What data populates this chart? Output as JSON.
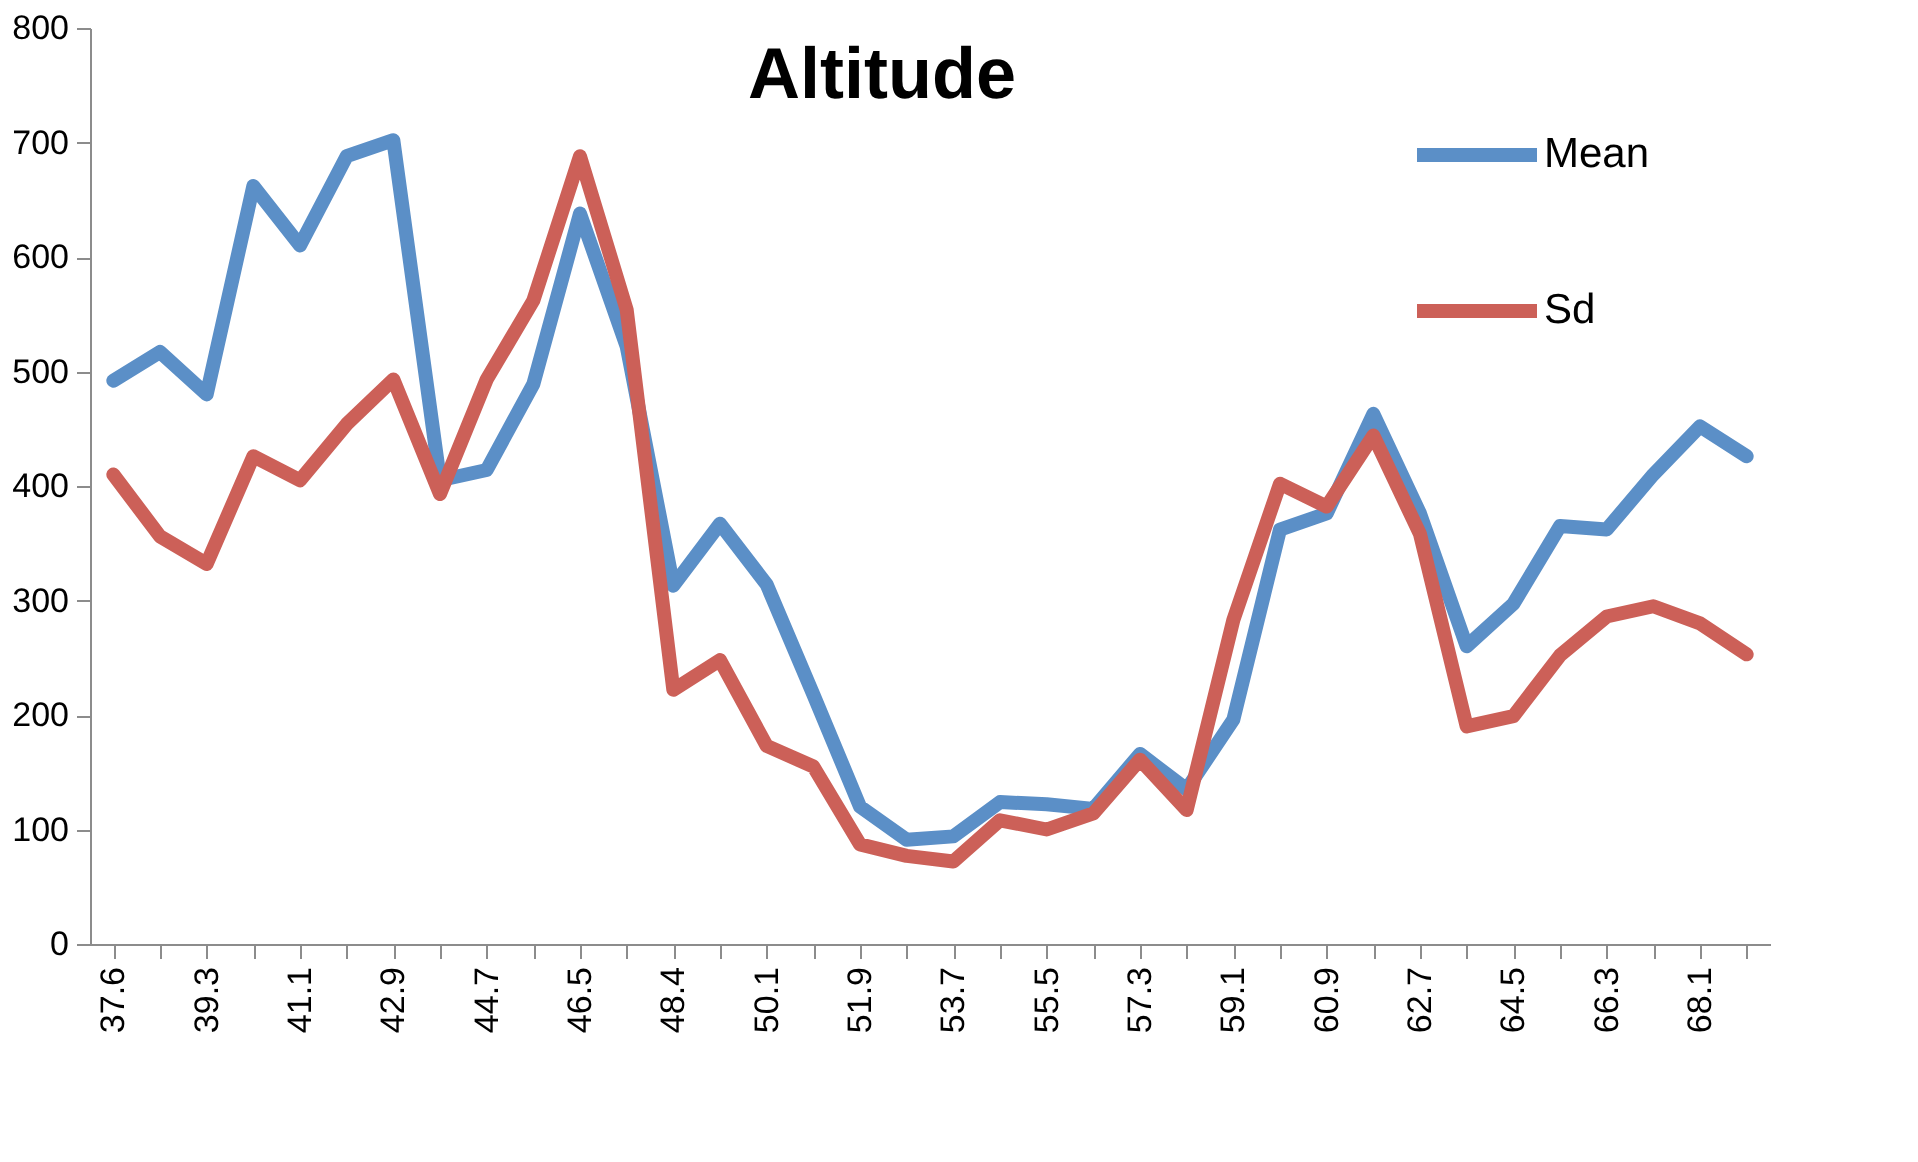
{
  "chart_data": {
    "type": "line",
    "title": "Altitude",
    "categories": [
      "37.6",
      null,
      "39.3",
      null,
      "41.1",
      null,
      "42.9",
      null,
      "44.7",
      null,
      "46.5",
      null,
      "48.4",
      null,
      "50.1",
      null,
      "51.9",
      null,
      "53.7",
      null,
      "55.5",
      null,
      "57.3",
      null,
      "59.1",
      null,
      "60.9",
      null,
      "62.7",
      null,
      "64.5",
      null,
      "66.3",
      null,
      "68.1",
      null
    ],
    "series": [
      {
        "name": "Mean",
        "color": "#5b8fc7",
        "values": [
          492,
          517,
          480,
          662,
          610,
          688,
          702,
          405,
          414,
          489,
          638,
          522,
          313,
          367,
          314,
          218,
          120,
          91,
          94,
          124,
          122,
          118,
          166,
          135,
          196,
          362,
          376,
          463,
          376,
          260,
          297,
          365,
          362,
          410,
          452,
          426
        ]
      },
      {
        "name": "Sd",
        "color": "#cc6058",
        "values": [
          410,
          356,
          332,
          426,
          405,
          454,
          493,
          393,
          493,
          562,
          688,
          554,
          222,
          248,
          173,
          155,
          87,
          77,
          72,
          108,
          100,
          114,
          161,
          117,
          283,
          402,
          382,
          444,
          358,
          190,
          199,
          252,
          286,
          295,
          280,
          253
        ]
      }
    ],
    "ylim": [
      0,
      800
    ],
    "yticks": [
      0,
      100,
      200,
      300,
      400,
      500,
      600,
      700,
      800
    ],
    "grid": false,
    "legend": "top right",
    "line_style": "solid",
    "marker": "none"
  }
}
